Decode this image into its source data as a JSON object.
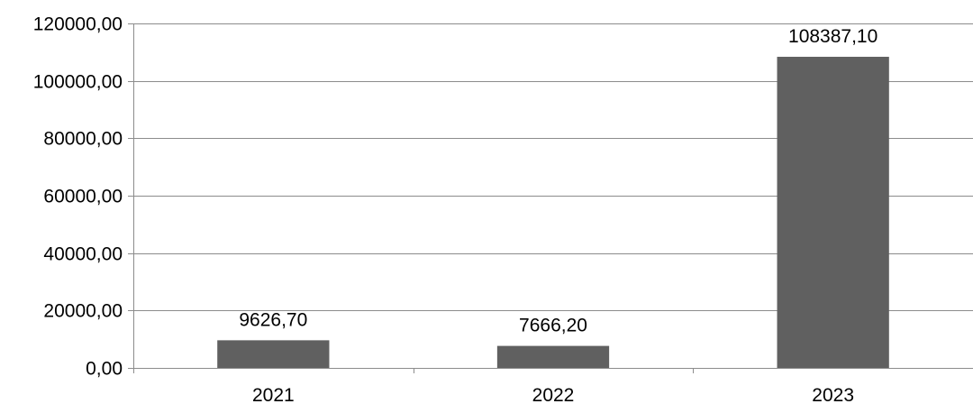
{
  "colors": {
    "bar": "#606060",
    "gridline": "#8c8c8c",
    "axis": "#8c8c8c",
    "text": "#000000",
    "background": "#ffffff"
  },
  "chart_data": {
    "type": "bar",
    "title": "",
    "xlabel": "",
    "ylabel": "",
    "categories": [
      "2021",
      "2022",
      "2023"
    ],
    "values": [
      9626.7,
      7666.2,
      108387.1
    ],
    "data_labels": [
      "9626,70",
      "7666,20",
      "108387,10"
    ],
    "ylim": [
      0,
      120000
    ],
    "yticks": [
      0,
      20000,
      40000,
      60000,
      80000,
      100000,
      120000
    ],
    "ytick_labels": [
      "0,00",
      "20000,00",
      "40000,00",
      "60000,00",
      "80000,00",
      "100000,00",
      "120000,00"
    ],
    "grid": true,
    "legend": "none"
  }
}
